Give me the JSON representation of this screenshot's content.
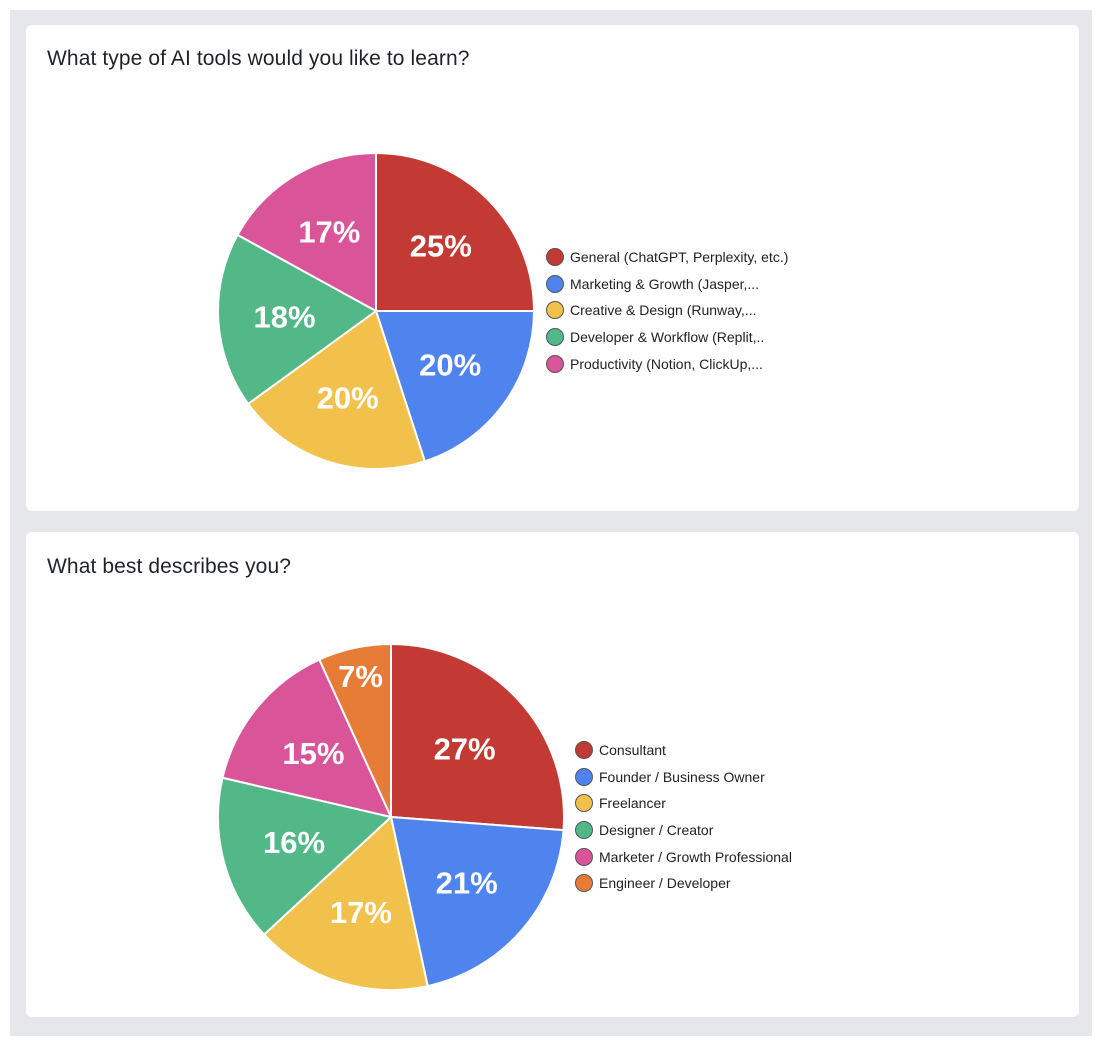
{
  "chart_data": [
    {
      "type": "pie",
      "title": "What type of AI tools would you like to learn?",
      "categories": [
        "General (ChatGPT, Perplexity, etc.)",
        "Marketing & Growth (Jasper,...",
        "Creative & Design (Runway,...",
        "Developer & Workflow (Replit,..",
        "Productivity (Notion, ClickUp,..."
      ],
      "values": [
        25,
        20,
        20,
        18,
        17
      ],
      "labels": [
        "25%",
        "20%",
        "20%",
        "18%",
        "17%"
      ],
      "colors": [
        "#c33a35",
        "#4f84ef",
        "#f1c14b",
        "#52b888",
        "#d95499"
      ],
      "legend_position": "right"
    },
    {
      "type": "pie",
      "title": "What best describes you?",
      "categories": [
        "Consultant",
        "Founder / Business Owner",
        "Freelancer",
        "Designer / Creator",
        "Marketer / Growth Professional",
        "Engineer / Developer"
      ],
      "values": [
        27,
        21,
        17,
        16,
        15,
        7
      ],
      "labels": [
        "27%",
        "21%",
        "17%",
        "16%",
        "15%",
        "7%"
      ],
      "colors": [
        "#c33a35",
        "#4f84ef",
        "#f1c14b",
        "#52b888",
        "#d95499",
        "#e77c37"
      ],
      "legend_position": "right"
    }
  ]
}
